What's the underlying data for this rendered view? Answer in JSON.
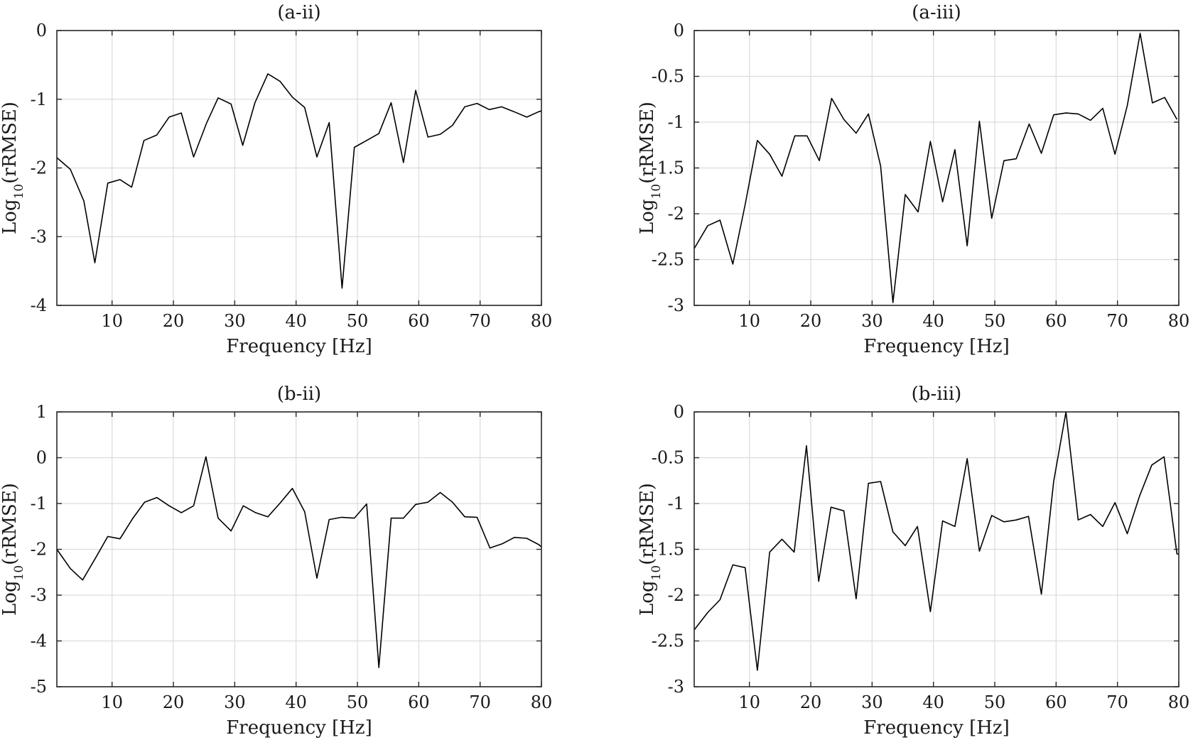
{
  "chart_data": [
    {
      "type": "line",
      "title": "(a-ii)",
      "xlabel": "Frequency [Hz]",
      "ylabel": "Log10(rRMSE)",
      "xlim": [
        1,
        80
      ],
      "ylim": [
        -4,
        0
      ],
      "xticks": [
        10,
        20,
        30,
        40,
        50,
        60,
        70,
        80
      ],
      "yticks": [
        0,
        -1,
        -2,
        -3,
        -4
      ],
      "ytick_labels": [
        "0",
        "-1",
        "-2",
        "-3",
        "-4"
      ],
      "grid": true,
      "series": [
        {
          "x": [
            1,
            3.2,
            5.4,
            7.2,
            9.3,
            11.3,
            13.2,
            15.2,
            17.3,
            19.3,
            21.3,
            23.3,
            25.4,
            27.3,
            29.4,
            31.3,
            33.3,
            35.4,
            37.4,
            39.4,
            41.4,
            43.4,
            45.4,
            47.5,
            49.5,
            51.5,
            53.5,
            55.5,
            57.5,
            59.5,
            61.5,
            63.5,
            65.5,
            67.5,
            69.5,
            71.5,
            73.5,
            75.5,
            77.6,
            79.6,
            80
          ],
          "values": [
            -1.85,
            -2.02,
            -2.48,
            -3.38,
            -2.22,
            -2.17,
            -2.28,
            -1.6,
            -1.52,
            -1.26,
            -1.2,
            -1.84,
            -1.35,
            -0.98,
            -1.07,
            -1.67,
            -1.05,
            -0.63,
            -0.74,
            -0.97,
            -1.12,
            -1.84,
            -1.34,
            -3.75,
            -1.7,
            -1.6,
            -1.5,
            -1.05,
            -1.92,
            -0.87,
            -1.55,
            -1.51,
            -1.38,
            -1.11,
            -1.06,
            -1.15,
            -1.11,
            -1.18,
            -1.26,
            -1.18,
            -1.17
          ]
        }
      ]
    },
    {
      "type": "line",
      "title": "(a-iii)",
      "xlabel": "Frequency [Hz]",
      "ylabel": "Log10(rRMSE)",
      "xlim": [
        1,
        80
      ],
      "ylim": [
        -3,
        0
      ],
      "xticks": [
        10,
        20,
        30,
        40,
        50,
        60,
        70,
        80
      ],
      "yticks": [
        0,
        -0.5,
        -1,
        -1.5,
        -2,
        -2.5,
        -3
      ],
      "ytick_labels": [
        "0",
        "-0.5",
        "-1",
        "-1.5",
        "-2",
        "-2.5",
        "-3"
      ],
      "grid": true,
      "series": [
        {
          "x": [
            1,
            3.2,
            5.2,
            7.3,
            9.3,
            11.3,
            13.3,
            15.3,
            17.4,
            19.4,
            21.4,
            23.4,
            25.4,
            27.4,
            29.4,
            31.4,
            33.4,
            35.4,
            37.5,
            39.5,
            41.5,
            43.5,
            45.5,
            47.5,
            49.5,
            51.5,
            53.5,
            55.6,
            57.6,
            59.6,
            61.6,
            63.6,
            65.6,
            67.6,
            69.6,
            71.6,
            73.7,
            75.7,
            77.7,
            79.7
          ],
          "values": [
            -2.38,
            -2.13,
            -2.07,
            -2.55,
            -1.9,
            -1.2,
            -1.35,
            -1.59,
            -1.15,
            -1.15,
            -1.42,
            -0.74,
            -0.97,
            -1.12,
            -0.91,
            -1.48,
            -2.97,
            -1.79,
            -1.98,
            -1.21,
            -1.87,
            -1.3,
            -2.35,
            -0.99,
            -2.05,
            -1.42,
            -1.4,
            -1.02,
            -1.34,
            -0.92,
            -0.9,
            -0.91,
            -0.98,
            -0.85,
            -1.35,
            -0.82,
            -0.03,
            -0.79,
            -0.73,
            -0.97
          ]
        }
      ]
    },
    {
      "type": "line",
      "title": "(b-ii)",
      "xlabel": "Frequency [Hz]",
      "ylabel": "Log10(rRMSE)",
      "xlim": [
        1,
        80
      ],
      "ylim": [
        -5,
        1
      ],
      "xticks": [
        10,
        20,
        30,
        40,
        50,
        60,
        70,
        80
      ],
      "yticks": [
        1,
        0,
        -1,
        -2,
        -3,
        -4,
        -5
      ],
      "ytick_labels": [
        "1",
        "0",
        "-1",
        "-2",
        "-3",
        "-4",
        "-5"
      ],
      "grid": true,
      "series": [
        {
          "x": [
            1,
            3.2,
            5.2,
            7.3,
            9.3,
            11.3,
            13.3,
            15.3,
            17.3,
            19.3,
            21.3,
            23.3,
            25.3,
            27.3,
            29.4,
            31.4,
            33.4,
            35.4,
            37.4,
            39.4,
            41.4,
            43.4,
            45.4,
            47.4,
            49.5,
            51.5,
            53.5,
            55.5,
            57.5,
            59.5,
            61.5,
            63.5,
            65.5,
            67.5,
            69.5,
            71.6,
            73.6,
            75.6,
            77.6,
            79.6,
            80
          ],
          "values": [
            -2.0,
            -2.42,
            -2.67,
            -2.19,
            -1.72,
            -1.77,
            -1.34,
            -0.97,
            -0.87,
            -1.05,
            -1.2,
            -1.05,
            0.02,
            -1.32,
            -1.6,
            -1.05,
            -1.2,
            -1.29,
            -0.99,
            -0.67,
            -1.18,
            -2.63,
            -1.35,
            -1.3,
            -1.32,
            -1.01,
            -4.58,
            -1.32,
            -1.32,
            -1.02,
            -0.97,
            -0.76,
            -0.97,
            -1.29,
            -1.3,
            -1.97,
            -1.88,
            -1.74,
            -1.76,
            -1.9,
            -1.95
          ]
        }
      ]
    },
    {
      "type": "line",
      "title": "(b-iii)",
      "xlabel": "Frequency [Hz]",
      "ylabel": "Log10(rRMSE)",
      "xlim": [
        1,
        80
      ],
      "ylim": [
        -3,
        0
      ],
      "xticks": [
        10,
        20,
        30,
        40,
        50,
        60,
        70,
        80
      ],
      "yticks": [
        0,
        -0.5,
        -1,
        -1.5,
        -2,
        -2.5,
        -3
      ],
      "ytick_labels": [
        "0",
        "-0.5",
        "-1",
        "-1.5",
        "-2",
        "-2.5",
        "-3"
      ],
      "grid": true,
      "series": [
        {
          "x": [
            1,
            3.2,
            5.2,
            7.3,
            9.3,
            11.3,
            13.3,
            15.3,
            17.3,
            19.3,
            21.3,
            23.3,
            25.4,
            27.4,
            29.4,
            31.4,
            33.4,
            35.4,
            37.4,
            39.5,
            41.5,
            43.5,
            45.5,
            47.5,
            49.5,
            51.5,
            53.5,
            55.5,
            57.6,
            59.6,
            61.6,
            63.6,
            65.6,
            67.6,
            69.6,
            71.6,
            73.6,
            75.6,
            77.6,
            79.7,
            80
          ],
          "values": [
            -2.38,
            -2.19,
            -2.05,
            -1.67,
            -1.7,
            -2.82,
            -1.53,
            -1.39,
            -1.53,
            -0.37,
            -1.85,
            -1.04,
            -1.08,
            -2.04,
            -0.78,
            -0.76,
            -1.31,
            -1.46,
            -1.25,
            -2.18,
            -1.19,
            -1.25,
            -0.51,
            -1.52,
            -1.13,
            -1.2,
            -1.18,
            -1.14,
            -1.99,
            -0.76,
            0.0,
            -1.18,
            -1.12,
            -1.25,
            -0.99,
            -1.33,
            -0.92,
            -0.58,
            -0.49,
            -1.55,
            -1.55
          ]
        }
      ]
    }
  ]
}
